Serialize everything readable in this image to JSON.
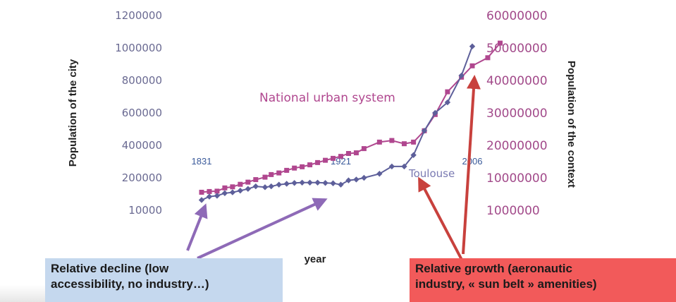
{
  "chart_data": {
    "type": "line",
    "left_axis": {
      "label": "Population of the city",
      "ticks": [
        "1200000",
        "1000000",
        "800000",
        "600000",
        "400000",
        "200000",
        "10000"
      ],
      "tick_values": [
        1200000,
        1000000,
        800000,
        600000,
        400000,
        200000,
        10000
      ]
    },
    "right_axis": {
      "label": "Population of the context",
      "ticks": [
        "60000000",
        "50000000",
        "40000000",
        "30000000",
        "20000000",
        "10000000",
        "1000000"
      ],
      "tick_values": [
        60000000,
        50000000,
        40000000,
        30000000,
        20000000,
        10000000,
        1000000
      ]
    },
    "xlabel": "year",
    "year_labels": [
      "1831",
      "1921",
      "2006"
    ],
    "year_values": [
      1831,
      1921,
      2006
    ],
    "series": [
      {
        "name": "National urban system",
        "axis": "right",
        "color": "#b0478f",
        "marker": "square",
        "points": [
          [
            1831,
            6000000
          ],
          [
            1836,
            6200000
          ],
          [
            1841,
            6300000
          ],
          [
            1846,
            7200000
          ],
          [
            1851,
            7500000
          ],
          [
            1856,
            8200000
          ],
          [
            1861,
            8800000
          ],
          [
            1866,
            9500000
          ],
          [
            1872,
            10200000
          ],
          [
            1876,
            11000000
          ],
          [
            1881,
            11500000
          ],
          [
            1886,
            12300000
          ],
          [
            1891,
            13000000
          ],
          [
            1896,
            13400000
          ],
          [
            1901,
            14000000
          ],
          [
            1906,
            14700000
          ],
          [
            1911,
            15400000
          ],
          [
            1916,
            16000000
          ],
          [
            1921,
            16600000
          ],
          [
            1926,
            17500000
          ],
          [
            1931,
            17700000
          ],
          [
            1936,
            19000000
          ],
          [
            1946,
            21000000
          ],
          [
            1954,
            21500000
          ],
          [
            1962,
            20500000
          ],
          [
            1968,
            21000000
          ],
          [
            1975,
            24500000
          ],
          [
            1982,
            29500000
          ],
          [
            1990,
            36500000
          ],
          [
            1999,
            41000000
          ],
          [
            2006,
            44500000
          ],
          [
            2016,
            47000000
          ],
          [
            2024,
            51500000
          ]
        ]
      },
      {
        "name": "Toulouse",
        "axis": "left",
        "color": "#5d5f9a",
        "marker": "diamond",
        "points": [
          [
            1831,
            70000
          ],
          [
            1836,
            90000
          ],
          [
            1841,
            95000
          ],
          [
            1846,
            110000
          ],
          [
            1851,
            115000
          ],
          [
            1856,
            125000
          ],
          [
            1861,
            135000
          ],
          [
            1866,
            150000
          ],
          [
            1872,
            145000
          ],
          [
            1876,
            150000
          ],
          [
            1881,
            160000
          ],
          [
            1886,
            165000
          ],
          [
            1891,
            170000
          ],
          [
            1896,
            172000
          ],
          [
            1901,
            172000
          ],
          [
            1906,
            172000
          ],
          [
            1911,
            170000
          ],
          [
            1916,
            168000
          ],
          [
            1921,
            160000
          ],
          [
            1926,
            185000
          ],
          [
            1931,
            190000
          ],
          [
            1936,
            200000
          ],
          [
            1946,
            225000
          ],
          [
            1954,
            270000
          ],
          [
            1962,
            270000
          ],
          [
            1968,
            340000
          ],
          [
            1975,
            490000
          ],
          [
            1982,
            600000
          ],
          [
            1990,
            665000
          ],
          [
            1999,
            830000
          ],
          [
            2006,
            1010000
          ]
        ]
      }
    ],
    "series_labels": [
      "National urban system",
      "Toulouse"
    ],
    "annotations": [
      "Relative decline (low accessibility, no industry…)",
      "Relative growth (aeronautic industry, « sun belt » amenities)"
    ],
    "legend": "none (inline labels)",
    "grid": false
  },
  "callouts": {
    "left": [
      "Relative decline (low",
      "accessibility, no industry…)"
    ],
    "right": [
      "Relative growth (aeronautic",
      "industry, « sun belt » amenities)"
    ]
  },
  "colors": {
    "national": "#b0478f",
    "toulouse": "#5d5f9a",
    "left_ticks": "#6a6a92",
    "right_ticks": "#a24a8a",
    "left_arrow": "#8e6ab7",
    "right_arrow": "#c8413d",
    "callout_left_bg": "#c5d8ee",
    "callout_right_bg": "#f25a5a"
  }
}
